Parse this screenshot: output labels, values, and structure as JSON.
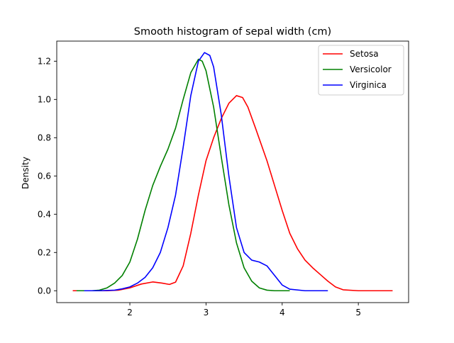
{
  "chart_data": {
    "type": "line",
    "title": "Smooth histogram of sepal width (cm)",
    "xlabel": "",
    "ylabel": "Density",
    "xlim": [
      1.04,
      5.66
    ],
    "ylim": [
      -0.062,
      1.305
    ],
    "xticks": [
      2,
      3,
      4,
      5
    ],
    "yticks": [
      0.0,
      0.2,
      0.4,
      0.6,
      0.8,
      1.0,
      1.2
    ],
    "grid": false,
    "legend_position": "top-right",
    "series": [
      {
        "name": "Setosa",
        "color": "#ff0000",
        "points": [
          [
            1.25,
            0.0
          ],
          [
            1.5,
            0.0
          ],
          [
            1.7,
            0.0
          ],
          [
            1.85,
            0.003
          ],
          [
            2.0,
            0.015
          ],
          [
            2.15,
            0.035
          ],
          [
            2.3,
            0.046
          ],
          [
            2.42,
            0.04
          ],
          [
            2.52,
            0.033
          ],
          [
            2.6,
            0.045
          ],
          [
            2.7,
            0.13
          ],
          [
            2.8,
            0.3
          ],
          [
            2.9,
            0.5
          ],
          [
            3.0,
            0.68
          ],
          [
            3.1,
            0.8
          ],
          [
            3.2,
            0.9
          ],
          [
            3.3,
            0.98
          ],
          [
            3.4,
            1.02
          ],
          [
            3.48,
            1.01
          ],
          [
            3.55,
            0.96
          ],
          [
            3.65,
            0.85
          ],
          [
            3.8,
            0.68
          ],
          [
            3.9,
            0.55
          ],
          [
            4.0,
            0.42
          ],
          [
            4.1,
            0.3
          ],
          [
            4.2,
            0.22
          ],
          [
            4.3,
            0.16
          ],
          [
            4.4,
            0.12
          ],
          [
            4.5,
            0.085
          ],
          [
            4.6,
            0.05
          ],
          [
            4.7,
            0.02
          ],
          [
            4.8,
            0.005
          ],
          [
            5.0,
            0.0
          ],
          [
            5.2,
            0.0
          ],
          [
            5.45,
            0.0
          ]
        ]
      },
      {
        "name": "Versicolor",
        "color": "#008000",
        "points": [
          [
            1.3,
            0.0
          ],
          [
            1.5,
            0.0
          ],
          [
            1.6,
            0.003
          ],
          [
            1.7,
            0.015
          ],
          [
            1.8,
            0.04
          ],
          [
            1.9,
            0.08
          ],
          [
            2.0,
            0.15
          ],
          [
            2.1,
            0.27
          ],
          [
            2.2,
            0.42
          ],
          [
            2.3,
            0.55
          ],
          [
            2.4,
            0.65
          ],
          [
            2.5,
            0.74
          ],
          [
            2.6,
            0.85
          ],
          [
            2.7,
            1.0
          ],
          [
            2.8,
            1.14
          ],
          [
            2.9,
            1.21
          ],
          [
            2.95,
            1.2
          ],
          [
            3.0,
            1.15
          ],
          [
            3.1,
            0.96
          ],
          [
            3.2,
            0.7
          ],
          [
            3.3,
            0.45
          ],
          [
            3.4,
            0.25
          ],
          [
            3.5,
            0.12
          ],
          [
            3.6,
            0.05
          ],
          [
            3.7,
            0.015
          ],
          [
            3.8,
            0.003
          ],
          [
            3.9,
            0.0
          ],
          [
            4.1,
            0.0
          ]
        ]
      },
      {
        "name": "Virginica",
        "color": "#0000ff",
        "points": [
          [
            1.4,
            0.0
          ],
          [
            1.6,
            0.0
          ],
          [
            1.8,
            0.003
          ],
          [
            1.9,
            0.01
          ],
          [
            2.0,
            0.02
          ],
          [
            2.1,
            0.04
          ],
          [
            2.2,
            0.07
          ],
          [
            2.3,
            0.12
          ],
          [
            2.4,
            0.2
          ],
          [
            2.5,
            0.33
          ],
          [
            2.6,
            0.5
          ],
          [
            2.7,
            0.75
          ],
          [
            2.8,
            1.02
          ],
          [
            2.9,
            1.2
          ],
          [
            2.98,
            1.245
          ],
          [
            3.05,
            1.23
          ],
          [
            3.1,
            1.17
          ],
          [
            3.2,
            0.92
          ],
          [
            3.3,
            0.6
          ],
          [
            3.4,
            0.33
          ],
          [
            3.5,
            0.2
          ],
          [
            3.6,
            0.16
          ],
          [
            3.7,
            0.15
          ],
          [
            3.8,
            0.13
          ],
          [
            3.9,
            0.08
          ],
          [
            4.0,
            0.03
          ],
          [
            4.1,
            0.008
          ],
          [
            4.3,
            0.0
          ],
          [
            4.6,
            0.0
          ]
        ]
      }
    ]
  }
}
